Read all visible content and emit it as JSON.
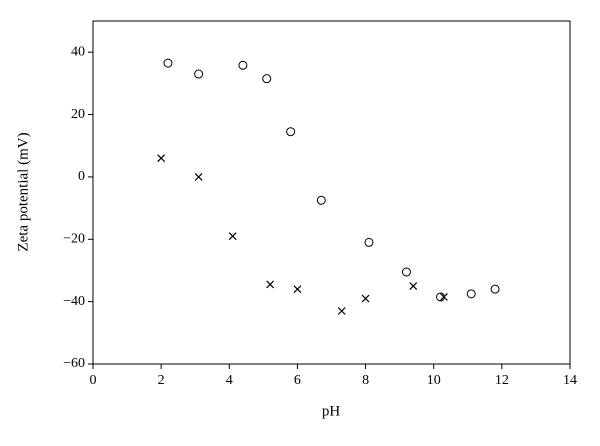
{
  "chart_data": {
    "type": "scatter",
    "xlabel": "pH",
    "ylabel": "Zeta potential (mV)",
    "xlim": [
      0,
      14
    ],
    "xticks": [
      0,
      2,
      4,
      6,
      8,
      10,
      12,
      14
    ],
    "ylim": [
      -60,
      50
    ],
    "yticks": [
      {
        "value": -60,
        "label": "−60"
      },
      {
        "value": -40,
        "label": "−40"
      },
      {
        "value": -20,
        "label": "−20"
      },
      0,
      20,
      40
    ],
    "grid": false,
    "series": [
      {
        "marker": "circle",
        "color": "#000000",
        "x": [
          2.2,
          3.1,
          4.4,
          5.1,
          5.8,
          6.7,
          8.1,
          9.2,
          10.2,
          11.1,
          11.8
        ],
        "values": [
          36.5,
          33,
          35.8,
          31.5,
          14.5,
          -7.5,
          -21,
          -30.5,
          -38.5,
          -37.5,
          -36
        ]
      },
      {
        "marker": "cross",
        "color": "#000000",
        "x": [
          2.0,
          3.1,
          4.1,
          5.2,
          6.0,
          7.3,
          8.0,
          9.4,
          10.3
        ],
        "values": [
          6,
          0,
          -19,
          -34.5,
          -36,
          -43,
          -39,
          -35,
          -38.5
        ]
      }
    ]
  }
}
